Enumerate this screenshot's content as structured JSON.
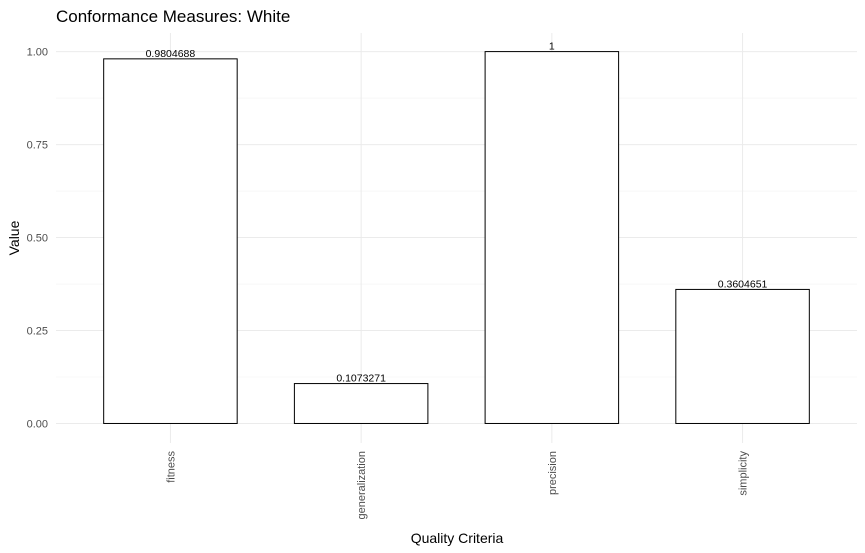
{
  "chart_data": {
    "type": "bar",
    "title": "Conformance Measures: White",
    "xlabel": "Quality Criteria",
    "ylabel": "Value",
    "categories": [
      "fitness",
      "generalization",
      "precision",
      "simplicity"
    ],
    "values": [
      0.9804688,
      0.1073271,
      1,
      0.3604651
    ],
    "value_labels": [
      "0.9804688",
      "0.1073271",
      "1",
      "0.3604651"
    ],
    "yticks": [
      0,
      0.25,
      0.5,
      0.75,
      1
    ],
    "ytick_labels": [
      "0.00",
      "0.25",
      "0.50",
      "0.75",
      "1.00"
    ],
    "ylim": [
      -0.0525,
      1.05
    ],
    "grid": true,
    "legend": "none",
    "bar_fill": "#ffffff",
    "bar_outline": "#000000"
  }
}
